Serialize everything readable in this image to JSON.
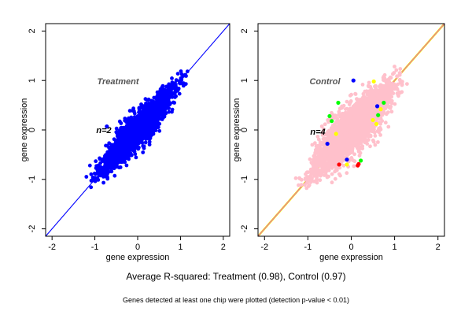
{
  "chart_data": [
    {
      "type": "scatter",
      "title": "Treatment",
      "annotation": "n=2",
      "xlabel": "gene expression",
      "ylabel": "gene expression",
      "xlim": [
        -2.15,
        2.15
      ],
      "ylim": [
        -2.15,
        2.15
      ],
      "x_ticks": [
        -2,
        -1,
        0,
        1,
        2
      ],
      "y_ticks": [
        -2,
        -1,
        0,
        1,
        2
      ],
      "grid": false,
      "point_colors": [
        "#0000ff"
      ],
      "reference_lines": [
        {
          "from": [
            -2.15,
            -2.15
          ],
          "to": [
            2.15,
            2.15
          ],
          "color": "#0000ff"
        }
      ],
      "cloud": {
        "x_range": [
          -1.15,
          1.2
        ],
        "center": [
          0.0,
          0.0
        ],
        "spread": 0.13,
        "density": 2200
      },
      "notable_points": [
        {
          "x": -0.72,
          "y": 0.07,
          "color": "#0000ff"
        },
        {
          "x": -0.5,
          "y": -0.22,
          "color": "#0000ff"
        },
        {
          "x": 0.6,
          "y": 0.82,
          "color": "#0000ff"
        },
        {
          "x": 0.28,
          "y": 0.12,
          "color": "#0000ff"
        }
      ]
    },
    {
      "type": "scatter",
      "title": "Control",
      "annotation": "n=4",
      "xlabel": "gene expression",
      "ylabel": "gene expression",
      "xlim": [
        -2.15,
        2.15
      ],
      "ylim": [
        -2.15,
        2.15
      ],
      "x_ticks": [
        -2,
        -1,
        0,
        1,
        2
      ],
      "y_ticks": [
        -2,
        -1,
        0,
        1,
        2
      ],
      "grid": false,
      "point_colors": [
        "#ffc0cb",
        "#00ff00",
        "#ffff00",
        "#0000ff",
        "#ff0000"
      ],
      "reference_lines": [
        {
          "from": [
            -2.15,
            -2.15
          ],
          "to": [
            2.15,
            2.15
          ],
          "color": "#ffff00"
        },
        {
          "from": [
            -2.15,
            -2.15
          ],
          "to": [
            2.15,
            2.15
          ],
          "color": "#00c000"
        },
        {
          "from": [
            -2.15,
            -2.15
          ],
          "to": [
            2.15,
            2.15
          ],
          "color": "#ff69b4"
        }
      ],
      "cloud": {
        "x_range": [
          -1.2,
          1.2
        ],
        "center": [
          0.0,
          0.0
        ],
        "spread": 0.2,
        "density": 2600
      },
      "notable_points": [
        {
          "x": -0.5,
          "y": 0.28,
          "color": "#00ff00"
        },
        {
          "x": -0.45,
          "y": 0.18,
          "color": "#00ff00"
        },
        {
          "x": -0.3,
          "y": 0.55,
          "color": "#00ff00"
        },
        {
          "x": 0.62,
          "y": 0.3,
          "color": "#00ff00"
        },
        {
          "x": 0.22,
          "y": -0.62,
          "color": "#00ff00"
        },
        {
          "x": 0.75,
          "y": 0.55,
          "color": "#00ff00"
        },
        {
          "x": 0.52,
          "y": 0.98,
          "color": "#ffff00"
        },
        {
          "x": 0.58,
          "y": 0.12,
          "color": "#ffff00"
        },
        {
          "x": 0.5,
          "y": 0.2,
          "color": "#ffff00"
        },
        {
          "x": 0.68,
          "y": 0.42,
          "color": "#ffff00"
        },
        {
          "x": -0.1,
          "y": -0.7,
          "color": "#ffff00"
        },
        {
          "x": -0.35,
          "y": -0.08,
          "color": "#ffff00"
        },
        {
          "x": -0.55,
          "y": -0.28,
          "color": "#0000ff"
        },
        {
          "x": 0.6,
          "y": 0.48,
          "color": "#0000ff"
        },
        {
          "x": -0.1,
          "y": -0.6,
          "color": "#0000ff"
        },
        {
          "x": 0.05,
          "y": 1.0,
          "color": "#0000ff"
        },
        {
          "x": 0.15,
          "y": -0.72,
          "color": "#ff0000"
        },
        {
          "x": 0.17,
          "y": -0.69,
          "color": "#ff0000"
        },
        {
          "x": -0.28,
          "y": -0.7,
          "color": "#ff0000"
        }
      ]
    }
  ],
  "caption_main": "Average R-squared: Treatment (0.98), Control (0.97)",
  "caption_note": "Genes detected at least one chip were plotted (detection p-value < 0.01)"
}
